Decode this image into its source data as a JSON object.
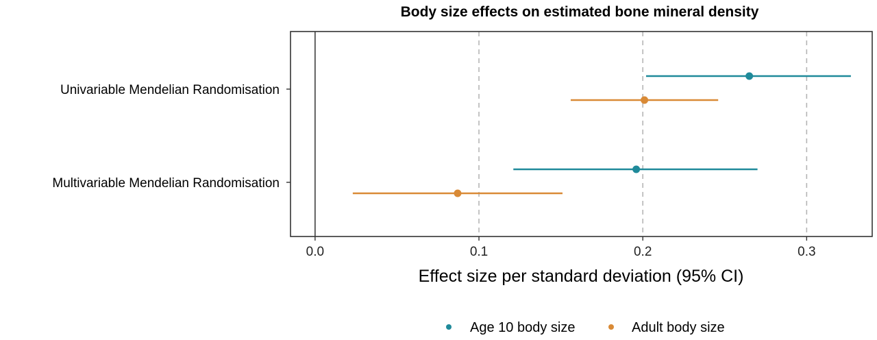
{
  "chart_data": {
    "type": "scatter",
    "subtype": "forest-plot",
    "title": "Body size effects on estimated bone mineral density",
    "xlabel": "Effect size per standard deviation (95% CI)",
    "ylabel": "",
    "xlim": [
      -0.015,
      0.34
    ],
    "xticks": [
      0.0,
      0.1,
      0.2,
      0.3
    ],
    "xtick_labels": [
      "0.0",
      "0.1",
      "0.2",
      "0.3"
    ],
    "reference_line": 0,
    "vertical_dashed_gridlines": [
      0.1,
      0.2,
      0.3
    ],
    "legend_position": "bottom",
    "categories": [
      "Univariable Mendelian Randomisation",
      "Multivariable Mendelian Randomisation"
    ],
    "series": [
      {
        "name": "Age 10 body size",
        "color": "#1f8a9a",
        "points": [
          {
            "category": "Univariable Mendelian Randomisation",
            "estimate": 0.265,
            "lower": 0.202,
            "upper": 0.327
          },
          {
            "category": "Multivariable Mendelian Randomisation",
            "estimate": 0.196,
            "lower": 0.121,
            "upper": 0.27
          }
        ]
      },
      {
        "name": "Adult body size",
        "color": "#d98a36",
        "points": [
          {
            "category": "Univariable Mendelian Randomisation",
            "estimate": 0.201,
            "lower": 0.156,
            "upper": 0.246
          },
          {
            "category": "Multivariable Mendelian Randomisation",
            "estimate": 0.087,
            "lower": 0.023,
            "upper": 0.151
          }
        ]
      }
    ]
  }
}
